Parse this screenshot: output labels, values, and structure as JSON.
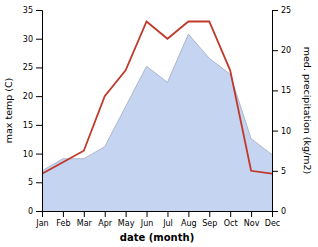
{
  "chart_data": {
    "type": "line",
    "categories": [
      "Jan",
      "Feb",
      "Mar",
      "Apr",
      "May",
      "Jun",
      "Jul",
      "Aug",
      "Sep",
      "Oct",
      "Nov",
      "Dec"
    ],
    "series": [
      {
        "type": "area",
        "axis": "y2",
        "color": "#c5d4f0",
        "values": [
          5.0,
          6.5,
          6.5,
          8.0,
          13.0,
          18.0,
          16.0,
          22.0,
          19.0,
          17.0,
          9.0,
          7.0
        ]
      },
      {
        "type": "line",
        "axis": "y",
        "color": "#c0392b",
        "values": [
          6.5,
          8.5,
          10.5,
          20.0,
          24.5,
          33.0,
          30.0,
          33.0,
          33.0,
          24.5,
          7.0,
          6.5
        ]
      }
    ],
    "xlabel": "date (month)",
    "ylabel": "max temp (C)",
    "y2label": "med. precipitation (kg/m2)",
    "ylim": [
      0,
      35
    ],
    "yticks": [
      0,
      5,
      10,
      15,
      20,
      25,
      30,
      35
    ],
    "y2lim": [
      0,
      25
    ],
    "y2ticks": [
      0,
      5,
      10,
      15,
      20,
      25
    ],
    "grid": false
  }
}
